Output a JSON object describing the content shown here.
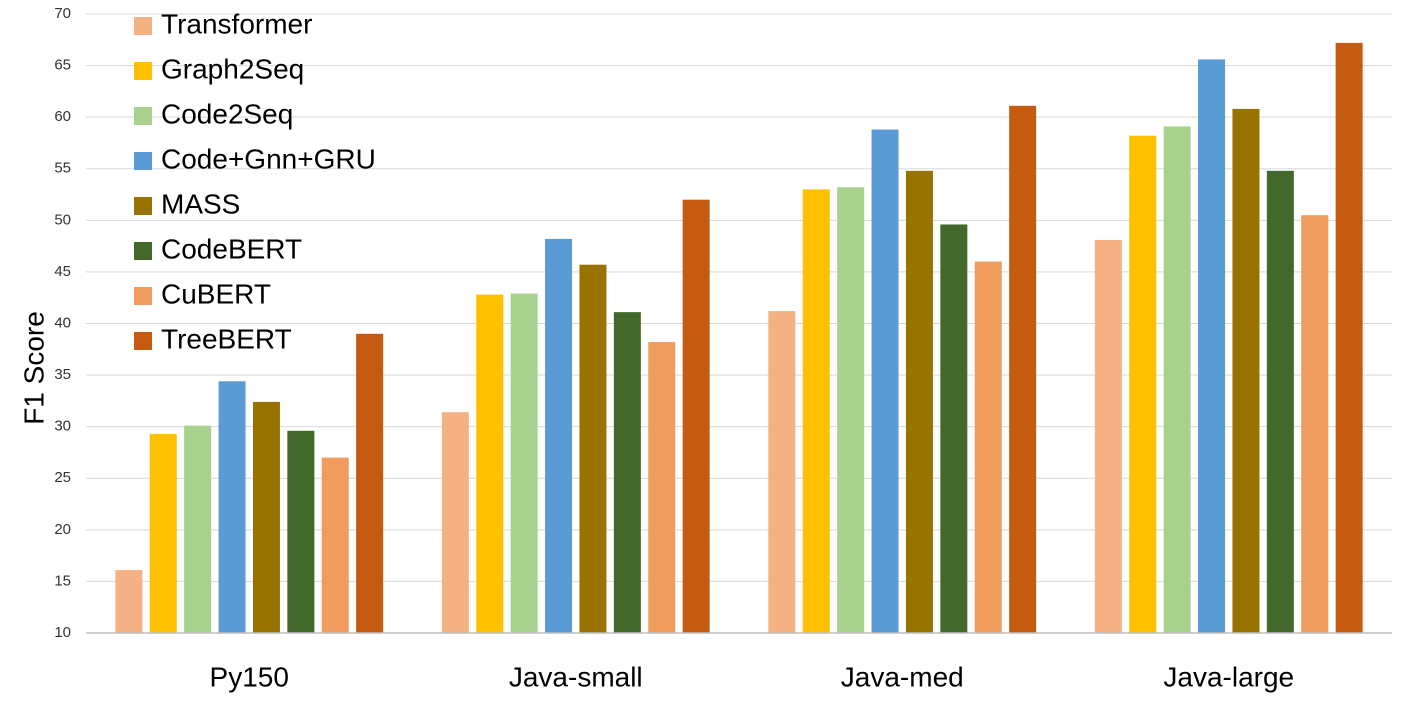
{
  "chart_data": {
    "type": "bar",
    "title": "",
    "xlabel": "",
    "ylabel": "F1 Score",
    "ylim": [
      10,
      70
    ],
    "yticks": [
      10,
      15,
      20,
      25,
      30,
      35,
      40,
      45,
      50,
      55,
      60,
      65,
      70
    ],
    "grid": true,
    "legend_position": "top-left",
    "categories": [
      "Py150",
      "Java-small",
      "Java-med",
      "Java-large"
    ],
    "series": [
      {
        "name": "Transformer",
        "color": "#F4B183",
        "values": [
          16.1,
          31.4,
          41.2,
          48.1
        ]
      },
      {
        "name": "Graph2Seq",
        "color": "#FFC000",
        "values": [
          29.3,
          42.8,
          53.0,
          58.2
        ]
      },
      {
        "name": "Code2Seq",
        "color": "#A9D18E",
        "values": [
          30.1,
          42.9,
          53.2,
          59.1
        ]
      },
      {
        "name": "Code+Gnn+GRU",
        "color": "#5B9BD5",
        "values": [
          34.4,
          48.2,
          58.8,
          65.6
        ]
      },
      {
        "name": "MASS",
        "color": "#997300",
        "values": [
          32.4,
          45.7,
          54.8,
          60.8
        ]
      },
      {
        "name": "CodeBERT",
        "color": "#43682B",
        "values": [
          29.6,
          41.1,
          49.6,
          54.8
        ]
      },
      {
        "name": "CuBERT",
        "color": "#F19C5F",
        "values": [
          27.0,
          38.2,
          46.0,
          50.5
        ]
      },
      {
        "name": "TreeBERT",
        "color": "#C55A11",
        "values": [
          39.0,
          52.0,
          61.1,
          67.2
        ]
      }
    ]
  }
}
